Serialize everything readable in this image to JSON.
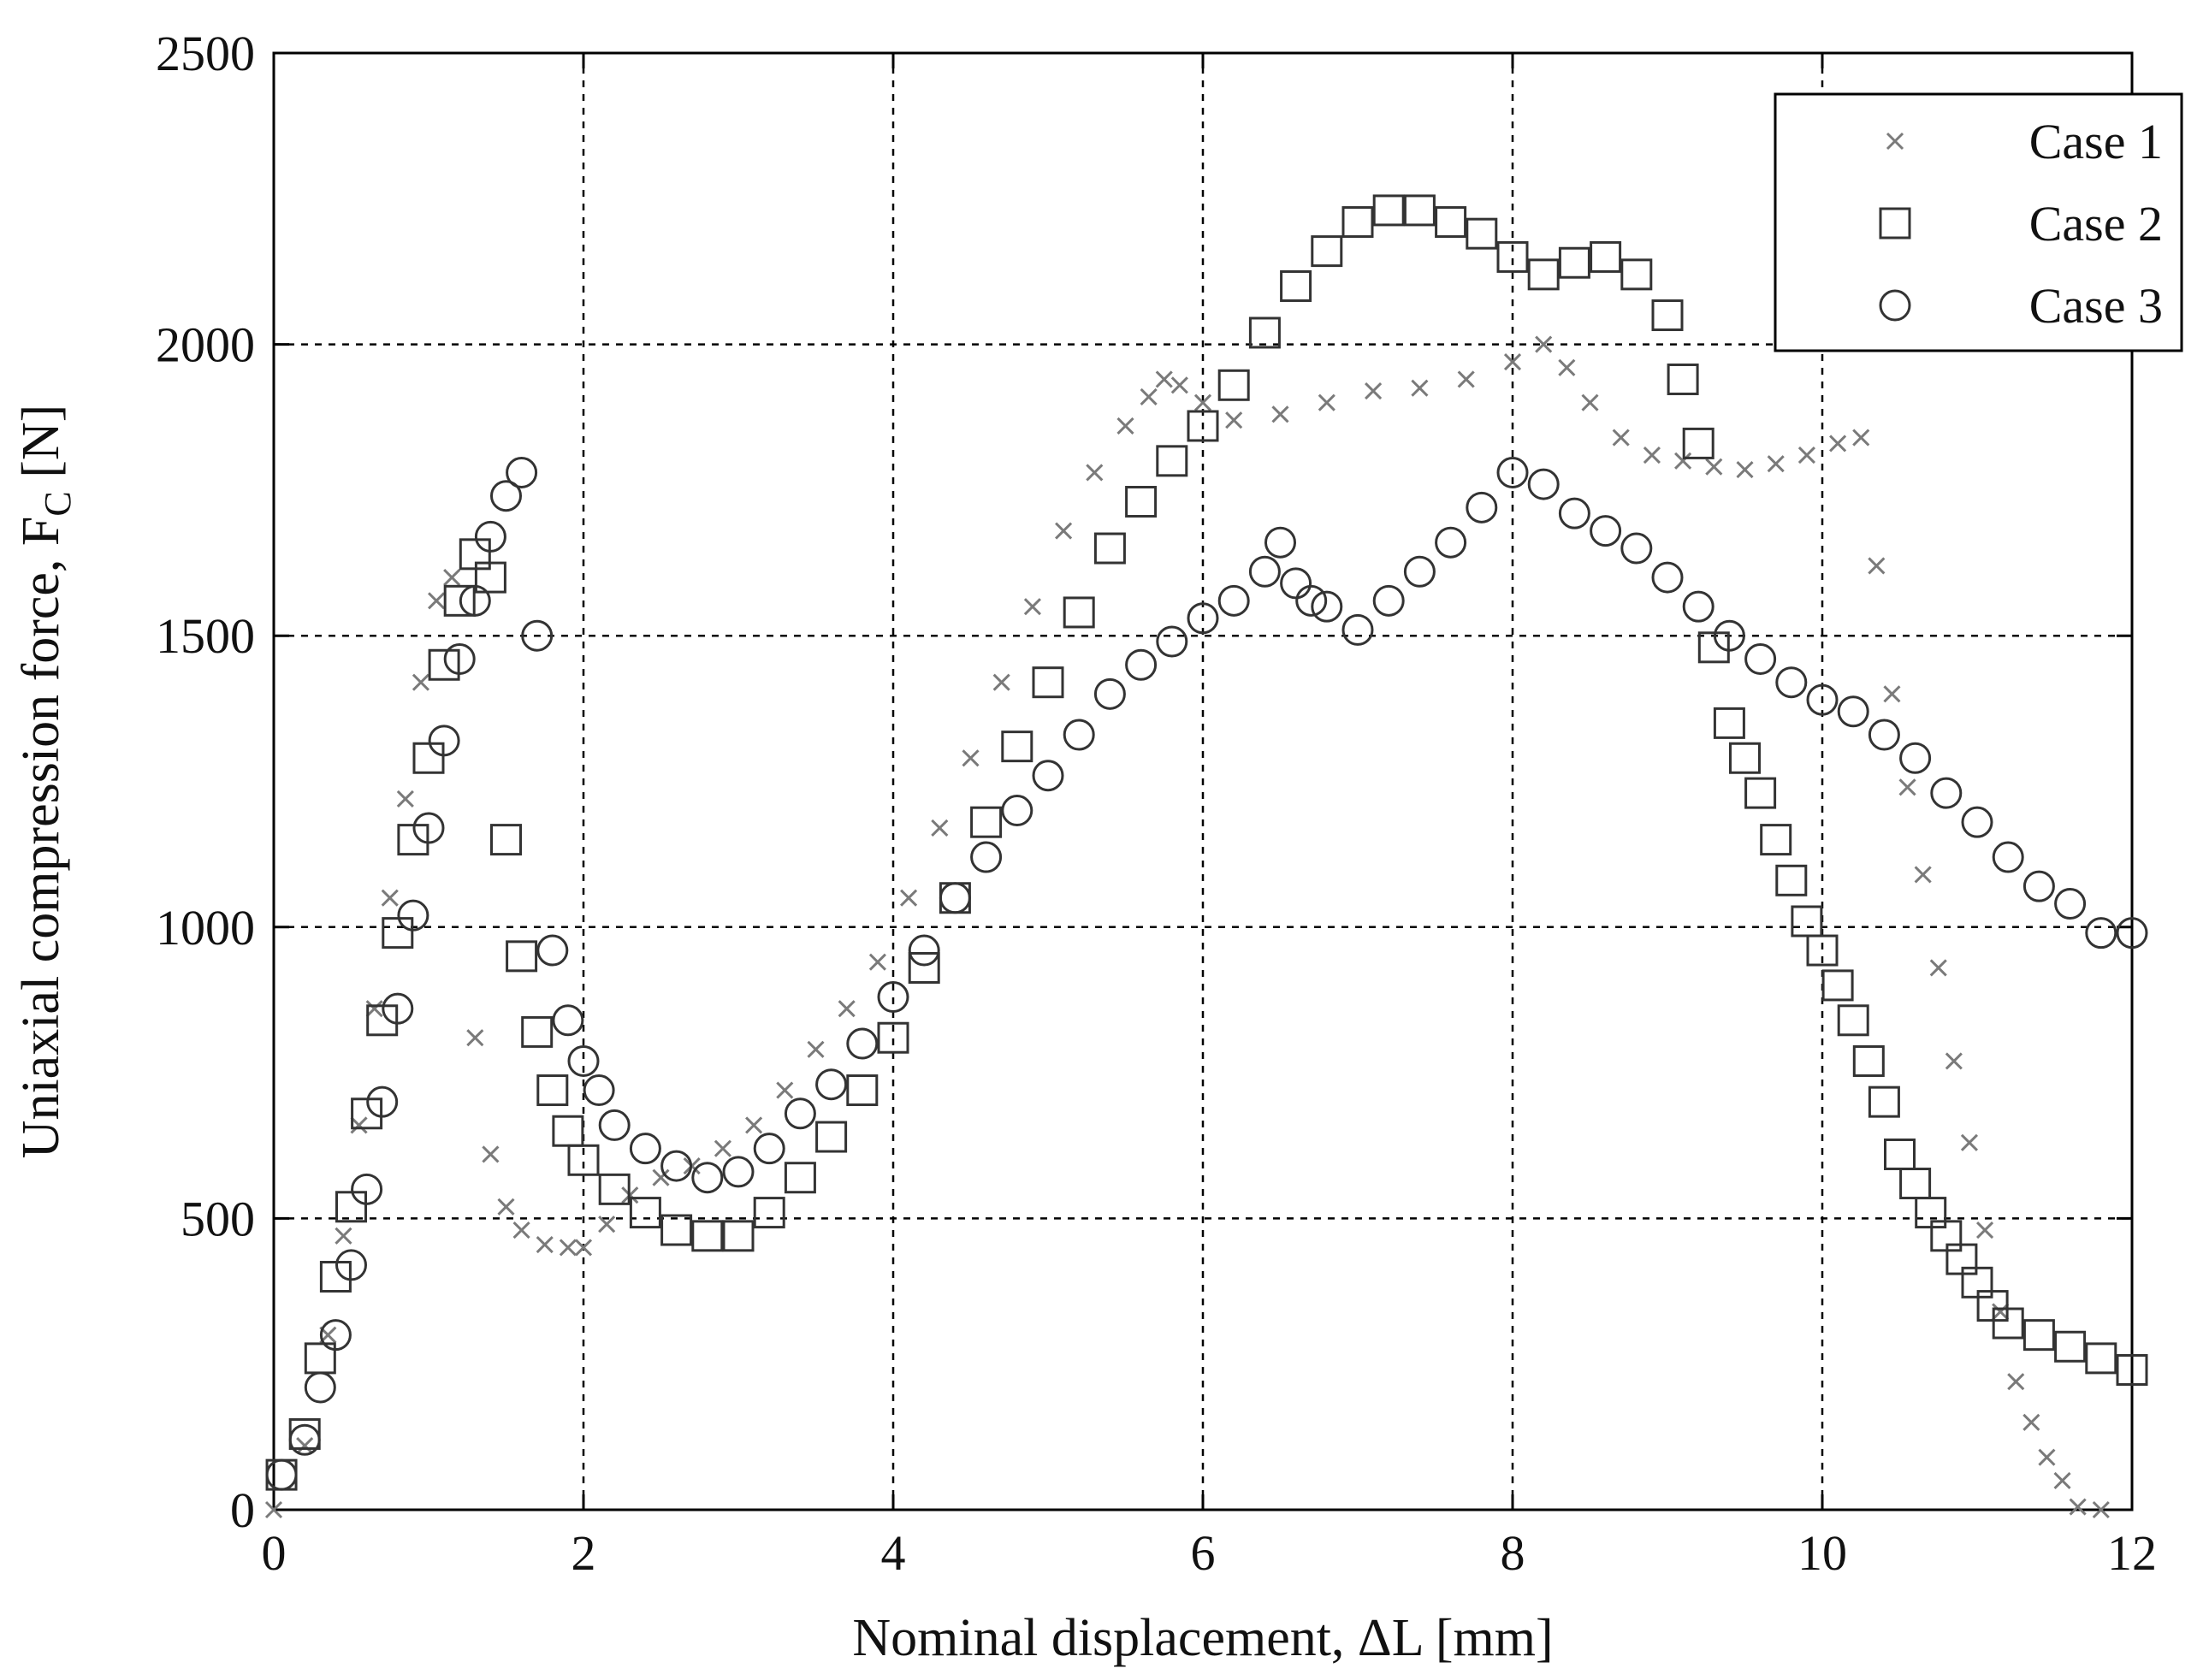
{
  "chart_data": {
    "type": "scatter",
    "title": "",
    "xlabel": "Nominal displacement, ΔL [mm]",
    "ylabel": "Uniaxial compression force, F",
    "ylabel_subscript": "C",
    "ylabel_unit": " [N]",
    "xlim": [
      0,
      12
    ],
    "ylim": [
      0,
      2500
    ],
    "x_ticks": [
      0,
      2,
      4,
      6,
      8,
      10,
      12
    ],
    "x_tick_labels": [
      "0",
      "2",
      "4",
      "6",
      "8",
      "10",
      "12"
    ],
    "y_ticks": [
      0,
      500,
      1000,
      1500,
      2000,
      2500
    ],
    "y_tick_labels": [
      "0",
      "500",
      "1000",
      "1500",
      "2000",
      "2500"
    ],
    "grid": true,
    "legend_position": "top-right",
    "series": [
      {
        "name": "Case 1",
        "marker": "x",
        "color": "#7a7a7a",
        "points": [
          [
            0,
            0
          ],
          [
            0.2,
            110
          ],
          [
            0.35,
            300
          ],
          [
            0.45,
            470
          ],
          [
            0.55,
            660
          ],
          [
            0.65,
            860
          ],
          [
            0.75,
            1050
          ],
          [
            0.85,
            1220
          ],
          [
            0.95,
            1420
          ],
          [
            1.05,
            1560
          ],
          [
            1.15,
            1600
          ],
          [
            1.3,
            810
          ],
          [
            1.4,
            610
          ],
          [
            1.5,
            520
          ],
          [
            1.6,
            480
          ],
          [
            1.75,
            455
          ],
          [
            1.9,
            450
          ],
          [
            2.0,
            450
          ],
          [
            2.15,
            490
          ],
          [
            2.3,
            540
          ],
          [
            2.5,
            570
          ],
          [
            2.7,
            590
          ],
          [
            2.9,
            620
          ],
          [
            3.1,
            660
          ],
          [
            3.3,
            720
          ],
          [
            3.5,
            790
          ],
          [
            3.7,
            860
          ],
          [
            3.9,
            940
          ],
          [
            4.1,
            1050
          ],
          [
            4.3,
            1170
          ],
          [
            4.5,
            1290
          ],
          [
            4.7,
            1420
          ],
          [
            4.9,
            1550
          ],
          [
            5.1,
            1680
          ],
          [
            5.3,
            1780
          ],
          [
            5.5,
            1860
          ],
          [
            5.65,
            1910
          ],
          [
            5.75,
            1940
          ],
          [
            5.85,
            1930
          ],
          [
            6.0,
            1900
          ],
          [
            6.2,
            1870
          ],
          [
            6.5,
            1880
          ],
          [
            6.8,
            1900
          ],
          [
            7.1,
            1920
          ],
          [
            7.4,
            1925
          ],
          [
            7.7,
            1940
          ],
          [
            8.0,
            1970
          ],
          [
            8.2,
            2000
          ],
          [
            8.35,
            1960
          ],
          [
            8.5,
            1900
          ],
          [
            8.7,
            1840
          ],
          [
            8.9,
            1810
          ],
          [
            9.1,
            1800
          ],
          [
            9.3,
            1790
          ],
          [
            9.5,
            1785
          ],
          [
            9.7,
            1795
          ],
          [
            9.9,
            1810
          ],
          [
            10.1,
            1830
          ],
          [
            10.25,
            1840
          ],
          [
            10.35,
            1620
          ],
          [
            10.45,
            1400
          ],
          [
            10.55,
            1240
          ],
          [
            10.65,
            1090
          ],
          [
            10.75,
            930
          ],
          [
            10.85,
            770
          ],
          [
            10.95,
            630
          ],
          [
            11.05,
            480
          ],
          [
            11.15,
            340
          ],
          [
            11.25,
            220
          ],
          [
            11.35,
            150
          ],
          [
            11.45,
            90
          ],
          [
            11.55,
            50
          ],
          [
            11.65,
            5
          ],
          [
            11.8,
            0
          ]
        ]
      },
      {
        "name": "Case 2",
        "marker": "square",
        "color": "#333333",
        "points": [
          [
            0.05,
            60
          ],
          [
            0.2,
            130
          ],
          [
            0.3,
            260
          ],
          [
            0.4,
            400
          ],
          [
            0.5,
            520
          ],
          [
            0.6,
            680
          ],
          [
            0.7,
            840
          ],
          [
            0.8,
            990
          ],
          [
            0.9,
            1150
          ],
          [
            1.0,
            1290
          ],
          [
            1.1,
            1450
          ],
          [
            1.2,
            1560
          ],
          [
            1.3,
            1640
          ],
          [
            1.4,
            1600
          ],
          [
            1.5,
            1150
          ],
          [
            1.6,
            950
          ],
          [
            1.7,
            820
          ],
          [
            1.8,
            720
          ],
          [
            1.9,
            650
          ],
          [
            2.0,
            600
          ],
          [
            2.2,
            550
          ],
          [
            2.4,
            510
          ],
          [
            2.6,
            480
          ],
          [
            2.8,
            470
          ],
          [
            3.0,
            470
          ],
          [
            3.2,
            510
          ],
          [
            3.4,
            570
          ],
          [
            3.6,
            640
          ],
          [
            3.8,
            720
          ],
          [
            4.0,
            810
          ],
          [
            4.2,
            930
          ],
          [
            4.4,
            1050
          ],
          [
            4.6,
            1180
          ],
          [
            4.8,
            1310
          ],
          [
            5.0,
            1420
          ],
          [
            5.2,
            1540
          ],
          [
            5.4,
            1650
          ],
          [
            5.6,
            1730
          ],
          [
            5.8,
            1800
          ],
          [
            6.0,
            1860
          ],
          [
            6.2,
            1930
          ],
          [
            6.4,
            2020
          ],
          [
            6.6,
            2100
          ],
          [
            6.8,
            2160
          ],
          [
            7.0,
            2210
          ],
          [
            7.2,
            2230
          ],
          [
            7.4,
            2230
          ],
          [
            7.6,
            2210
          ],
          [
            7.8,
            2190
          ],
          [
            8.0,
            2150
          ],
          [
            8.2,
            2120
          ],
          [
            8.4,
            2140
          ],
          [
            8.6,
            2150
          ],
          [
            8.8,
            2120
          ],
          [
            9.0,
            2050
          ],
          [
            9.1,
            1940
          ],
          [
            9.2,
            1830
          ],
          [
            9.3,
            1480
          ],
          [
            9.4,
            1350
          ],
          [
            9.5,
            1290
          ],
          [
            9.6,
            1230
          ],
          [
            9.7,
            1150
          ],
          [
            9.8,
            1080
          ],
          [
            9.9,
            1010
          ],
          [
            10.0,
            960
          ],
          [
            10.1,
            900
          ],
          [
            10.2,
            840
          ],
          [
            10.3,
            770
          ],
          [
            10.4,
            700
          ],
          [
            10.5,
            610
          ],
          [
            10.6,
            560
          ],
          [
            10.7,
            510
          ],
          [
            10.8,
            470
          ],
          [
            10.9,
            430
          ],
          [
            11.0,
            390
          ],
          [
            11.1,
            350
          ],
          [
            11.2,
            320
          ],
          [
            11.4,
            300
          ],
          [
            11.6,
            280
          ],
          [
            11.8,
            260
          ],
          [
            12.0,
            240
          ]
        ]
      },
      {
        "name": "Case 3",
        "marker": "circle",
        "color": "#333333",
        "points": [
          [
            0.05,
            60
          ],
          [
            0.2,
            120
          ],
          [
            0.3,
            210
          ],
          [
            0.4,
            300
          ],
          [
            0.5,
            420
          ],
          [
            0.6,
            550
          ],
          [
            0.7,
            700
          ],
          [
            0.8,
            860
          ],
          [
            0.9,
            1020
          ],
          [
            1.0,
            1170
          ],
          [
            1.1,
            1320
          ],
          [
            1.2,
            1460
          ],
          [
            1.3,
            1560
          ],
          [
            1.4,
            1670
          ],
          [
            1.5,
            1740
          ],
          [
            1.6,
            1780
          ],
          [
            1.7,
            1500
          ],
          [
            1.8,
            960
          ],
          [
            1.9,
            840
          ],
          [
            2.0,
            770
          ],
          [
            2.1,
            720
          ],
          [
            2.2,
            660
          ],
          [
            2.4,
            620
          ],
          [
            2.6,
            590
          ],
          [
            2.8,
            570
          ],
          [
            3.0,
            580
          ],
          [
            3.2,
            620
          ],
          [
            3.4,
            680
          ],
          [
            3.6,
            730
          ],
          [
            3.8,
            800
          ],
          [
            4.0,
            880
          ],
          [
            4.2,
            960
          ],
          [
            4.4,
            1050
          ],
          [
            4.6,
            1120
          ],
          [
            4.8,
            1200
          ],
          [
            5.0,
            1260
          ],
          [
            5.2,
            1330
          ],
          [
            5.4,
            1400
          ],
          [
            5.6,
            1450
          ],
          [
            5.8,
            1490
          ],
          [
            6.0,
            1530
          ],
          [
            6.2,
            1560
          ],
          [
            6.4,
            1610
          ],
          [
            6.5,
            1660
          ],
          [
            6.6,
            1590
          ],
          [
            6.7,
            1560
          ],
          [
            6.8,
            1550
          ],
          [
            7.0,
            1510
          ],
          [
            7.2,
            1560
          ],
          [
            7.4,
            1610
          ],
          [
            7.6,
            1660
          ],
          [
            7.8,
            1720
          ],
          [
            8.0,
            1780
          ],
          [
            8.2,
            1760
          ],
          [
            8.4,
            1710
          ],
          [
            8.6,
            1680
          ],
          [
            8.8,
            1650
          ],
          [
            9.0,
            1600
          ],
          [
            9.2,
            1550
          ],
          [
            9.4,
            1500
          ],
          [
            9.6,
            1460
          ],
          [
            9.8,
            1420
          ],
          [
            10.0,
            1390
          ],
          [
            10.2,
            1370
          ],
          [
            10.4,
            1330
          ],
          [
            10.6,
            1290
          ],
          [
            10.8,
            1230
          ],
          [
            11.0,
            1180
          ],
          [
            11.2,
            1120
          ],
          [
            11.4,
            1070
          ],
          [
            11.6,
            1040
          ],
          [
            11.8,
            990
          ],
          [
            12.0,
            990
          ]
        ]
      }
    ]
  }
}
